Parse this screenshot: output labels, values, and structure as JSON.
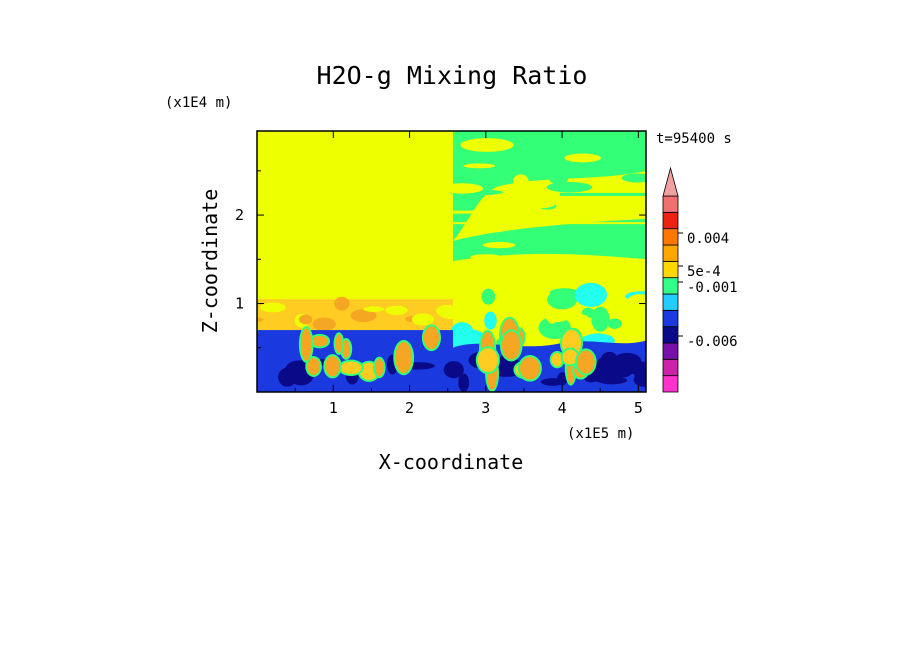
{
  "chart_data": {
    "type": "heatmap",
    "title": "H2O-g Mixing Ratio",
    "xlabel": "X-coordinate",
    "ylabel": "Z-coordinate",
    "x_unit": "(x1E5 m)",
    "y_unit": "(x1E4 m)",
    "time_label": "t=95400 s",
    "xlim": [
      0,
      5.1
    ],
    "ylim": [
      0,
      2.95
    ],
    "x_ticks": [
      "1",
      "2",
      "3",
      "4",
      "5"
    ],
    "x_tick_values": [
      1,
      2,
      3,
      4,
      5
    ],
    "y_ticks": [
      "1",
      "2"
    ],
    "y_tick_values": [
      1,
      2
    ],
    "colorbar": {
      "colors": [
        "#ff33cc",
        "#cc22aa",
        "#7711aa",
        "#0a0a88",
        "#1a3ae0",
        "#22ccff",
        "#33ff88",
        "#ffd700",
        "#ffa500",
        "#ff7700",
        "#ee2211",
        "#f07070",
        "#f0a0a0"
      ],
      "tick_labels": [
        "0.004",
        "5e-4",
        "-0.001",
        "-0.006"
      ],
      "tick_values": [
        0.004,
        0.0005,
        -0.001,
        -0.006
      ]
    },
    "palette": {
      "background": "#eeff00",
      "green": "#33ff77",
      "cyan": "#22ffee",
      "blue": "#1a3ae0",
      "navy": "#0a0a88",
      "orange": "#f5a623",
      "gold": "#ffcc22"
    }
  }
}
